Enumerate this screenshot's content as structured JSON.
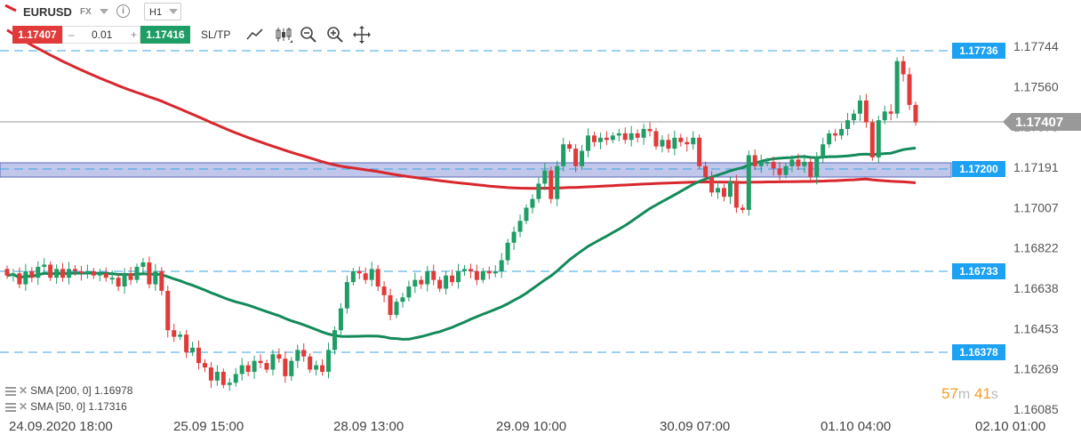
{
  "toolbar": {
    "symbol": "EURUSD",
    "market": "FX",
    "timeframe": "H1",
    "sell_price": "1.17407",
    "lot_minus": "–",
    "lot_value": "0.01",
    "lot_plus": "+",
    "buy_price": "1.17416",
    "sltp_label": "SL/TP"
  },
  "legend": [
    {
      "label": "SMA [200, 0] 1.16978"
    },
    {
      "label": "SMA [50, 0] 1.17316"
    }
  ],
  "timer": {
    "minutes": "57",
    "minutes_unit": "m",
    "seconds": "41",
    "seconds_unit": "s"
  },
  "colors": {
    "bull": "#1f9d66",
    "bear": "#e03a3a",
    "sma200": "#d9272e",
    "sma50": "#138a5a",
    "hline": "#3aa3e3",
    "zone_fill": "#b5bde8",
    "zone_border": "#5a68b8",
    "price_tag": "#999999",
    "level_tag": "#1da1f2"
  },
  "chart_data": {
    "type": "candlestick",
    "instrument": "EURUSD",
    "timeframe": "H1",
    "y_axis_ticks": [
      1.17744,
      1.1756,
      1.17375,
      1.17191,
      1.17007,
      1.16822,
      1.16638,
      1.16453,
      1.16269,
      1.16085
    ],
    "x_axis_labels": [
      "24.09.2020 18:00",
      "25.09 15:00",
      "28.09 13:00",
      "29.09 10:00",
      "30.09 07:00",
      "01.10 04:00",
      "02.10 01:00"
    ],
    "ylim": [
      1.16085,
      1.17744
    ],
    "current_price": "1.17407",
    "horizontal_levels": [
      "1.17736",
      "1.17200",
      "1.16733",
      "1.16378"
    ],
    "zone": {
      "from": 1.1718,
      "to": 1.1722
    },
    "candles": [
      [
        1.167,
        1.1671,
        1.1666,
        1.1672,
        1.1669,
        1.1674,
        1.1675,
        1.1669,
        1.1673
      ],
      [
        1.1669,
        1.1673,
        1.1672,
        1.1671,
        1.1672,
        1.167,
        1.1671,
        1.1669,
        1.1669,
        1.1665,
        1.1671,
        1.1668,
        1.1674,
        1.1676,
        1.1666,
        1.1672,
        1.1663,
        1.1645,
        1.1642,
        1.1643,
        1.1635,
        1.1637,
        1.163,
        1.1628,
        1.1622,
        1.1626,
        1.162,
        1.1621,
        1.1625,
        1.1629,
        1.1626,
        1.1631,
        1.163,
        1.1627,
        1.1634,
        1.1632,
        1.1624,
        1.1631,
        1.1636,
        1.1633,
        1.1627,
        1.1629,
        1.1626,
        1.1636,
        1.1645,
        1.1655,
        1.1667,
        1.1672,
        1.1671,
        1.1668,
        1.1673,
        1.1665,
        1.1661,
        1.1652,
        1.1658,
        1.166,
        1.1665,
        1.1668,
        1.1666,
        1.1672,
        1.1668,
        1.1664,
        1.167,
        1.1667,
        1.1672,
        1.1673,
        1.1672,
        1.1668,
        1.1672,
        1.1671,
        1.1672,
        1.1677,
        1.1685,
        1.169,
        1.1695,
        1.1701,
        1.1705,
        1.1712,
        1.1718,
        1.1705,
        1.172,
        1.173,
        1.1728,
        1.172,
        1.1727,
        1.1734,
        1.1731,
        1.1733,
        1.1732,
        1.1734,
        1.1735,
        1.1732,
        1.1735,
        1.1733,
        1.1737,
        1.1736,
        1.1729,
        1.1732,
        1.1728,
        1.1733,
        1.1731,
        1.173,
        1.1733,
        1.172,
        1.1715,
        1.1708,
        1.171,
        1.1706,
        1.1713,
        1.1701,
        1.17,
        1.1725,
        1.172,
        1.1722,
        1.1722,
        1.1719,
        1.1716,
        1.172,
        1.1723,
        1.172,
        1.1722,
        1.1715,
        1.1724,
        1.173,
        1.1735,
        1.1734,
        1.1737,
        1.1741,
        1.1744,
        1.175,
        1.174,
        1.1724,
        1.1741,
        1.1745,
        1.1744,
        1.1768,
        1.1762,
        1.1748,
        1.174
      ]
    ]
  }
}
